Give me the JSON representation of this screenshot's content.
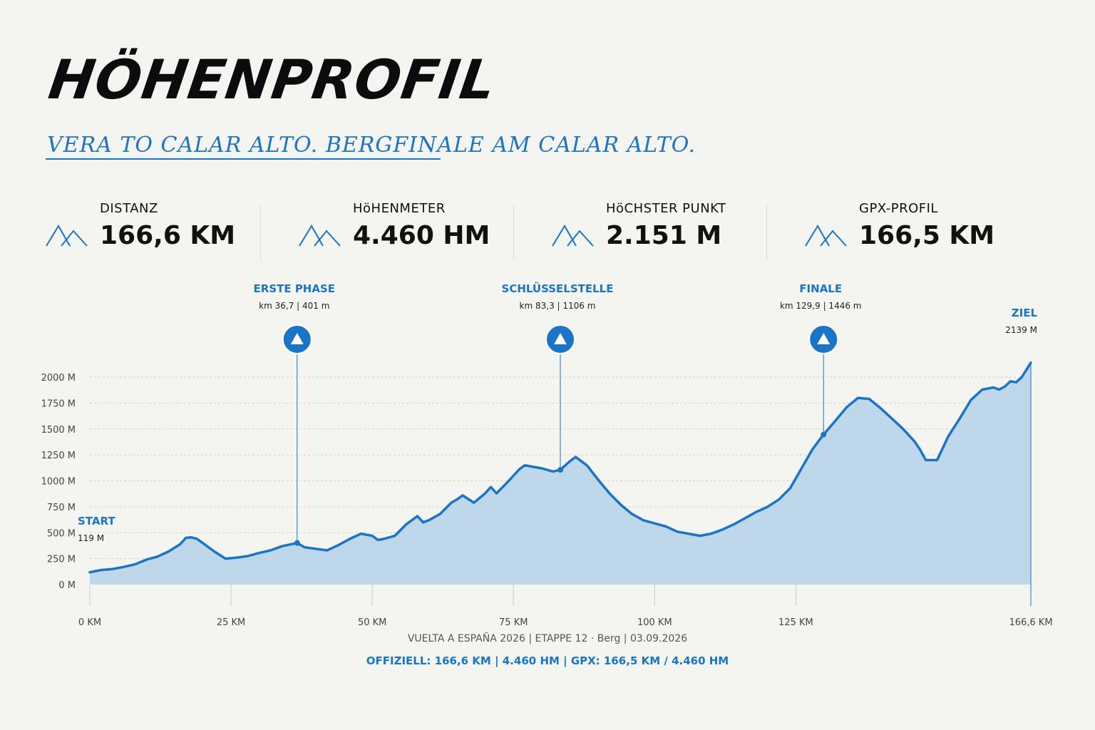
{
  "header": {
    "title": "HÖHENPROFIL",
    "subtitle": "VERA TO CALAR ALTO. BERGFINALE AM CALAR ALTO."
  },
  "stats": [
    {
      "label": "DISTANZ",
      "value": "166,6 KM",
      "icon": "mountain-icon"
    },
    {
      "label": "HöHENMETER",
      "value": "4.460 HM",
      "icon": "mountain-icon"
    },
    {
      "label": "HöCHSTER PUNKT",
      "value": "2.151 M",
      "icon": "mountain-icon"
    },
    {
      "label": "GPX-PROFIL",
      "value": "166,5 KM",
      "icon": "mountain-icon"
    }
  ],
  "colors": {
    "accent": "#1a74c8",
    "fill": "#bcd5ea",
    "background": "#f4f4f0"
  },
  "chart_data": {
    "type": "area",
    "xlim": [
      0,
      166.6
    ],
    "ylim": [
      0,
      2000
    ],
    "grid": true,
    "y_ticks": [
      0,
      250,
      500,
      750,
      1000,
      1250,
      1500,
      1750,
      2000
    ],
    "y_tick_labels": [
      "0 M",
      "250 M",
      "500 M",
      "750 M",
      "1000 M",
      "1250 M",
      "1500 M",
      "1750 M",
      "2000 M"
    ],
    "x_ticks": [
      0,
      25,
      50,
      75,
      100,
      125,
      166.6
    ],
    "x_tick_labels": [
      "0 KM",
      "25 KM",
      "50 KM",
      "75 KM",
      "100 KM",
      "125 KM",
      "166,6 KM"
    ],
    "x": [
      0,
      2,
      4,
      6,
      8,
      10,
      12,
      14,
      16,
      17,
      18,
      19,
      20,
      22,
      24,
      26,
      28,
      30,
      32,
      34,
      36.7,
      38,
      40,
      42,
      44,
      46,
      48,
      50,
      51,
      52,
      54,
      56,
      58,
      59,
      60,
      62,
      64,
      65,
      66,
      68,
      70,
      71,
      72,
      74,
      76,
      77,
      78,
      80,
      82,
      83.3,
      85,
      86,
      88,
      90,
      92,
      94,
      96,
      98,
      100,
      102,
      104,
      106,
      108,
      110,
      112,
      114,
      116,
      118,
      120,
      122,
      124,
      126,
      128,
      129.9,
      132,
      134,
      136,
      138,
      140,
      142,
      144,
      146,
      147,
      148,
      150,
      152,
      154,
      156,
      158,
      160,
      161,
      162,
      163,
      164,
      165,
      166.6
    ],
    "y": [
      119,
      140,
      150,
      170,
      195,
      240,
      270,
      320,
      390,
      450,
      455,
      440,
      400,
      320,
      250,
      260,
      275,
      305,
      330,
      370,
      401,
      360,
      345,
      330,
      380,
      440,
      490,
      470,
      430,
      440,
      470,
      580,
      660,
      600,
      620,
      680,
      790,
      820,
      860,
      790,
      880,
      940,
      880,
      990,
      1110,
      1150,
      1140,
      1120,
      1090,
      1106,
      1190,
      1230,
      1150,
      1010,
      880,
      770,
      680,
      620,
      590,
      560,
      510,
      490,
      470,
      490,
      530,
      580,
      640,
      700,
      750,
      820,
      930,
      1120,
      1310,
      1446,
      1580,
      1710,
      1800,
      1790,
      1700,
      1600,
      1500,
      1380,
      1300,
      1200,
      1200,
      1430,
      1600,
      1780,
      1880,
      1900,
      1880,
      1910,
      1960,
      1950,
      2000,
      2139
    ],
    "waypoints": [
      {
        "title": "ERSTE PHASE",
        "sub": "km 36,7 | 401 m",
        "km": 36.7,
        "elev": 401
      },
      {
        "title": "SCHLÜSSELSTELLE",
        "sub": "km 83,3 | 1106 m",
        "km": 83.3,
        "elev": 1106
      },
      {
        "title": "FINALE",
        "sub": "km 129,9 | 1446 m",
        "km": 129.9,
        "elev": 1446
      }
    ],
    "start": {
      "label": "START",
      "sub": "119 M"
    },
    "finish": {
      "label": "ZIEL",
      "sub": "2139 M"
    }
  },
  "footer": {
    "line1": "VUELTA A ESPAÑA 2026 | ETAPPE 12 · Berg | 03.09.2026",
    "line2": "OFFIZIELL: 166,6 KM | 4.460 HM | GPX: 166,5 KM / 4.460 HM"
  }
}
